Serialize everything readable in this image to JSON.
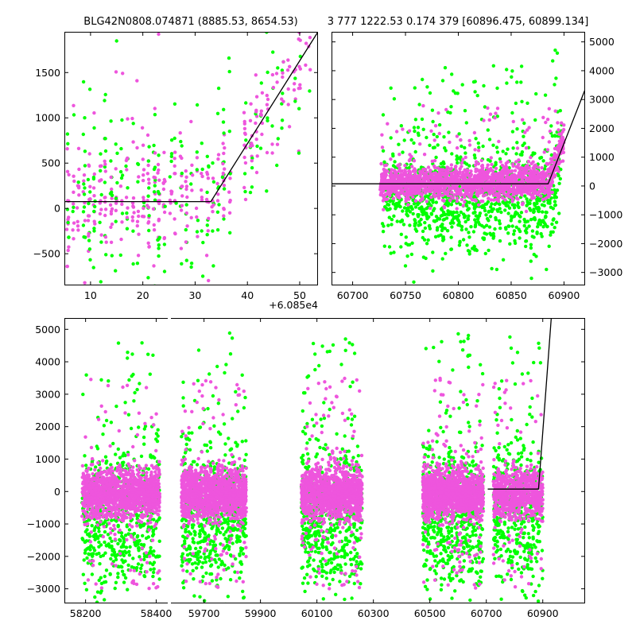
{
  "chart_data": [
    {
      "id": "top-left",
      "type": "scatter",
      "title": "BLG42N0808.074871 (8885.53, 8654.53)",
      "x_offset_label": "+6.085e4",
      "xlim": [
        5,
        53.5
      ],
      "ylim": [
        -850,
        1950
      ],
      "xticks": [
        10,
        20,
        30,
        40,
        50
      ],
      "yticks": [
        -500,
        0,
        500,
        1000,
        1500
      ],
      "xtick_labels": [
        "10",
        "20",
        "30",
        "40",
        "50"
      ],
      "ytick_labels": [
        "−500",
        "0",
        "500",
        "1000",
        "1500"
      ],
      "ytick_side": "left",
      "series_colors": {
        "green": "#00ff00",
        "magenta": "#ee55dd"
      },
      "model_line": {
        "x": [
          5,
          33,
          53.5
        ],
        "y": [
          75,
          75,
          1950
        ]
      }
    },
    {
      "id": "top-right",
      "type": "scatter",
      "title": "3 777 1222.53 0.174 379 [60896.475, 60899.134]",
      "xlim": [
        60680,
        60920
      ],
      "ylim": [
        -3450,
        5350
      ],
      "xticks": [
        60700,
        60750,
        60800,
        60850,
        60900
      ],
      "yticks": [
        -3000,
        -2000,
        -1000,
        0,
        1000,
        2000,
        3000,
        4000,
        5000
      ],
      "xtick_labels": [
        "60700",
        "60750",
        "60800",
        "60850",
        "60900"
      ],
      "ytick_labels": [
        "−3000",
        "−2000",
        "−1000",
        "0",
        "1000",
        "2000",
        "3000",
        "4000",
        "5000"
      ],
      "ytick_side": "right",
      "series_colors": {
        "green": "#00ff00",
        "magenta": "#ee55dd"
      },
      "model_line": {
        "x": [
          60680,
          60885,
          60920
        ],
        "y": [
          75,
          75,
          3350
        ]
      }
    },
    {
      "id": "bottom",
      "type": "scatter",
      "xlim": [
        58140,
        61050
      ],
      "xbreak": [
        58435,
        59580
      ],
      "ylim": [
        -3450,
        5350
      ],
      "xticks": [
        58200,
        58400,
        59700,
        59900,
        60100,
        60300,
        60500,
        60700,
        60900
      ],
      "yticks": [
        -3000,
        -2000,
        -1000,
        0,
        1000,
        2000,
        3000,
        4000,
        5000
      ],
      "xtick_labels": [
        "58200",
        "58400",
        "59700",
        "59900",
        "60100",
        "60300",
        "60500",
        "60700",
        "60900"
      ],
      "ytick_labels": [
        "−3000",
        "−2000",
        "−1000",
        "0",
        "1000",
        "2000",
        "3000",
        "4000",
        "5000"
      ],
      "ytick_side": "left",
      "seasons": [
        {
          "start": 58190,
          "end": 58410
        },
        {
          "start": 59620,
          "end": 59850
        },
        {
          "start": 60045,
          "end": 60260
        },
        {
          "start": 60475,
          "end": 60690
        },
        {
          "start": 60725,
          "end": 60900
        }
      ],
      "series_colors": {
        "green": "#00ff00",
        "magenta": "#ee55dd"
      },
      "model_line": {
        "x": [
          60705,
          60885,
          60930
        ],
        "y": [
          75,
          75,
          5350
        ]
      }
    }
  ]
}
